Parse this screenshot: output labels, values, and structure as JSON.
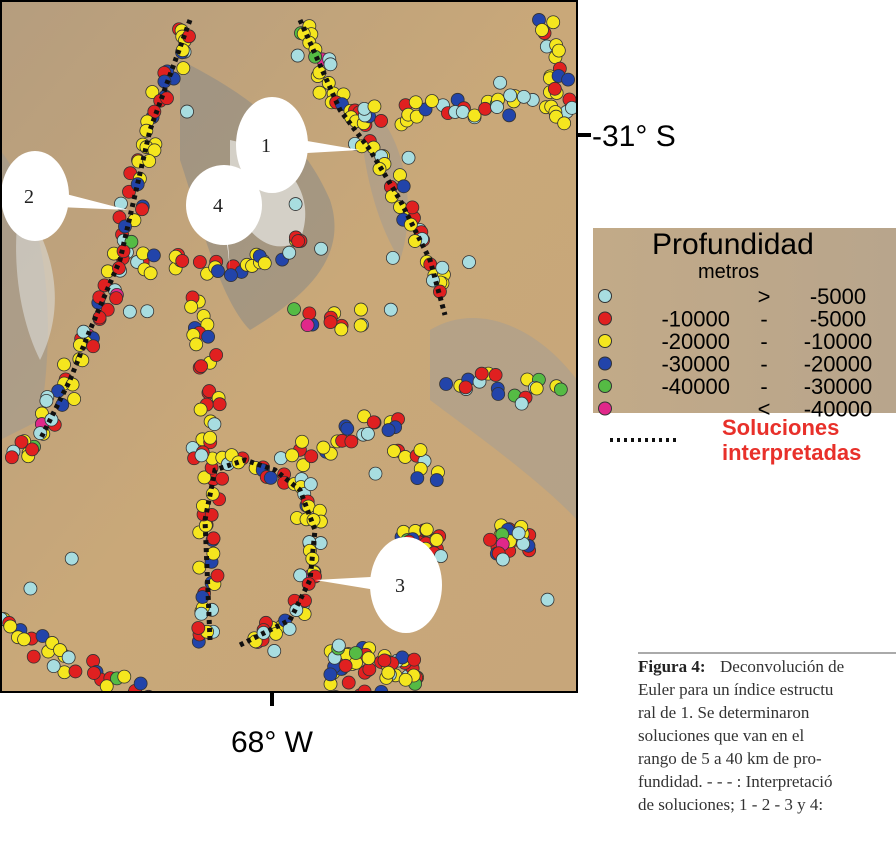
{
  "map": {
    "lat_label": "-31° S",
    "lon_label": "68° W",
    "callouts": [
      "1",
      "2",
      "3",
      "4"
    ]
  },
  "legend": {
    "title": "Profundidad",
    "unit": "metros",
    "rows": [
      {
        "color": "#a8dde0",
        "text": [
          ">",
          "-5000"
        ]
      },
      {
        "color": "#e02020",
        "text": [
          "-10000",
          "-",
          "-5000"
        ]
      },
      {
        "color": "#f5e61e",
        "text": [
          "-20000",
          "-",
          "-10000"
        ]
      },
      {
        "color": "#2244aa",
        "text": [
          "-30000",
          "-",
          "-20000"
        ]
      },
      {
        "color": "#55bb44",
        "text": [
          "-40000",
          "-",
          "-30000"
        ]
      },
      {
        "color": "#e0288a",
        "text": [
          "<",
          "-40000"
        ]
      }
    ]
  },
  "interpretation": {
    "label_lines": [
      "Soluciones",
      "interpretadas"
    ]
  },
  "caption": {
    "bold": "Figura 4:",
    "lines": [
      "Deconvolución de",
      "Euler para un índice estructu",
      "ral de 1. Se determinaron",
      "soluciones que van en el",
      "rango de 5 a 40 km de pro-",
      "fundidad. - - - : Interpretació",
      "de soluciones; 1 - 2 - 3 y 4:"
    ]
  }
}
